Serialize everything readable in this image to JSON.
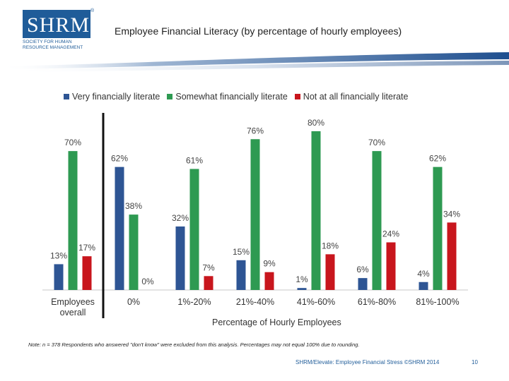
{
  "logo": {
    "letters": "SHRM",
    "registered": "®",
    "subtitle": "Society for Human Resource Management"
  },
  "title": "Employee Financial Literacy (by percentage of hourly employees)",
  "legend": [
    {
      "label": "Very financially literate",
      "color": "#2e5594"
    },
    {
      "label": "Somewhat financially literate",
      "color": "#2e9a52"
    },
    {
      "label": "Not at all financially literate",
      "color": "#c8161d"
    }
  ],
  "chart_data": {
    "type": "bar",
    "title": "Employee Financial Literacy (by percentage of hourly employees)",
    "xlabel": "Percentage of Hourly Employees",
    "ylabel": "",
    "ylim": [
      0,
      80
    ],
    "grid": false,
    "legend_position": "top",
    "categories": [
      "Employees overall",
      "0%",
      "1%-20%",
      "21%-40%",
      "41%-60%",
      "61%-80%",
      "81%-100%"
    ],
    "series": [
      {
        "name": "Very financially literate",
        "color": "#2e5594",
        "values": [
          13,
          62,
          32,
          15,
          1,
          6,
          4
        ]
      },
      {
        "name": "Somewhat financially literate",
        "color": "#2e9a52",
        "values": [
          70,
          38,
          61,
          76,
          80,
          70,
          62
        ]
      },
      {
        "name": "Not at all financially literate",
        "color": "#c8161d",
        "values": [
          17,
          0,
          7,
          9,
          18,
          24,
          34
        ]
      }
    ],
    "data_labels": [
      [
        "13%",
        "62%",
        "32%",
        "15%",
        "1%",
        "6%",
        "4%"
      ],
      [
        "70%",
        "38%",
        "61%",
        "76%",
        "80%",
        "70%",
        "62%"
      ],
      [
        "17%",
        "0%",
        "7%",
        "9%",
        "18%",
        "24%",
        "34%"
      ]
    ]
  },
  "axis_title": "Percentage of Hourly Employees",
  "note": "Note: n = 378 Respondents who answered \"don't know\" were excluded from this analysis. Percentages may not equal 100% due to rounding.",
  "footer": "SHRM/Elevate: Employee Financial Stress ©SHRM 2014",
  "page_number": "10"
}
